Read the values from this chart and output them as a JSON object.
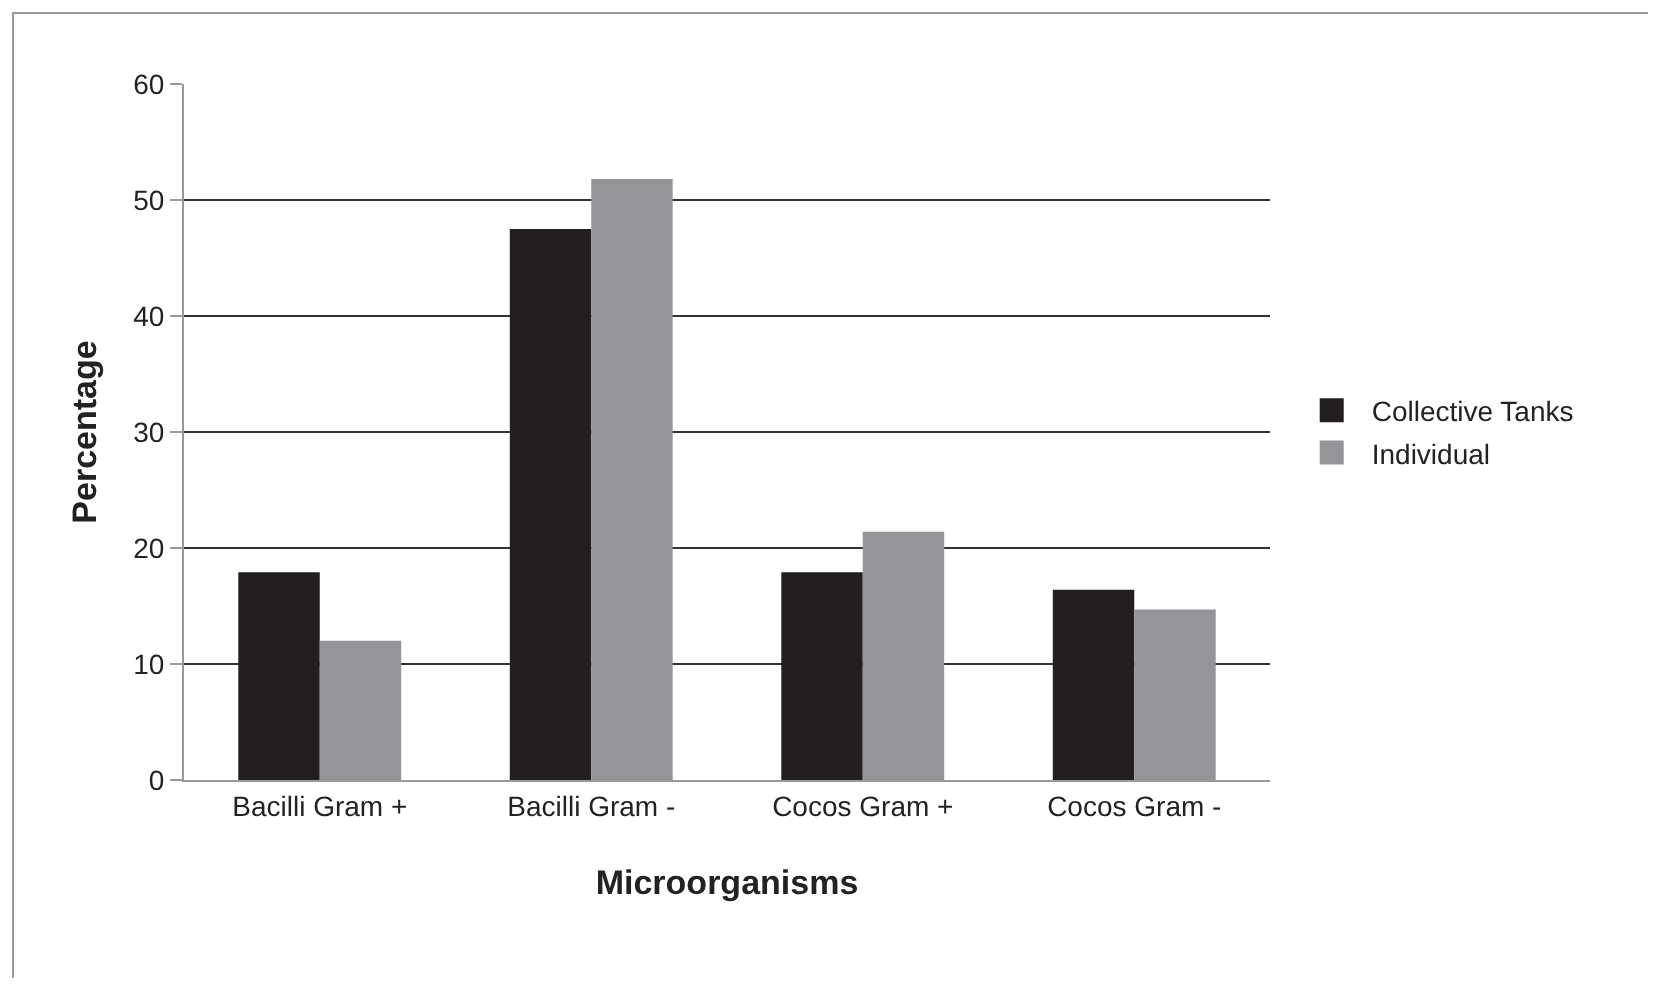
{
  "chart_data": {
    "type": "bar",
    "xlabel": "Microorganisms",
    "ylabel": "Percentage",
    "categories": [
      "Bacilli Gram +",
      "Bacilli Gram -",
      "Cocos Gram +",
      "Cocos Gram -"
    ],
    "series": [
      {
        "name": "Collective Tanks",
        "color": "#231f20",
        "values": [
          17.9,
          47.5,
          17.9,
          16.4
        ]
      },
      {
        "name": "Individual",
        "color": "#939598",
        "values": [
          12.0,
          51.8,
          21.4,
          14.7
        ]
      }
    ],
    "ylim": [
      0,
      60
    ],
    "yticks": [
      0,
      10,
      20,
      30,
      40,
      50,
      60
    ],
    "grid": "y",
    "legend": "right"
  }
}
